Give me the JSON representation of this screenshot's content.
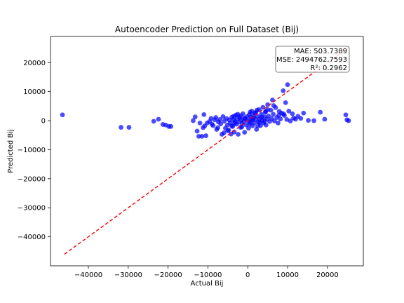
{
  "chart_data": {
    "type": "scatter",
    "title": "Autoencoder Prediction on Full Dataset (Bij)",
    "xlabel": "Actual Bij",
    "ylabel": "Predicted Bij",
    "xlim": [
      -49500,
      29000
    ],
    "ylim": [
      -50000,
      29000
    ],
    "xticks": [
      -40000,
      -30000,
      -20000,
      -10000,
      0,
      10000,
      20000
    ],
    "yticks": [
      -40000,
      -30000,
      -20000,
      -10000,
      0,
      10000,
      20000
    ],
    "xtick_labels": [
      "−40000",
      "−30000",
      "−20000",
      "−10000",
      "0",
      "10000",
      "20000"
    ],
    "ytick_labels": [
      "−40000",
      "−30000",
      "−20000",
      "−10000",
      "0",
      "10000",
      "20000"
    ],
    "grid": false,
    "point_color": "#0000ff",
    "point_alpha": 0.7,
    "reference_line": {
      "style": "dashed",
      "color": "#ff0000",
      "from": [
        -46000,
        -46000
      ],
      "to": [
        25500,
        25500
      ]
    },
    "stats": [
      "MAE: 503.7389",
      "MSE: 2494762.7593",
      "R²: 0.2962"
    ],
    "stats_placement": "top-right",
    "points": [
      [
        -46500,
        2000
      ],
      [
        -31800,
        -2300
      ],
      [
        -29800,
        -2300
      ],
      [
        -23600,
        -200
      ],
      [
        -22400,
        500
      ],
      [
        -21300,
        -1300
      ],
      [
        -20600,
        -1500
      ],
      [
        -19800,
        -2000
      ],
      [
        -19300,
        -2000
      ],
      [
        -13700,
        0
      ],
      [
        -13200,
        1300
      ],
      [
        -12700,
        -3600
      ],
      [
        -12300,
        -5400
      ],
      [
        -11500,
        -5400
      ],
      [
        -11200,
        -2400
      ],
      [
        -11000,
        2100
      ],
      [
        -10500,
        -5200
      ],
      [
        -10200,
        -800
      ],
      [
        -9600,
        -300
      ],
      [
        -9200,
        800
      ],
      [
        -8700,
        -1700
      ],
      [
        -8300,
        300
      ],
      [
        -7800,
        -3000
      ],
      [
        -7400,
        -400
      ],
      [
        -7000,
        400
      ],
      [
        -6800,
        -1100
      ],
      [
        -6500,
        -4700
      ],
      [
        -6200,
        1400
      ],
      [
        -5900,
        -200
      ],
      [
        -5600,
        -2600
      ],
      [
        -5300,
        700
      ],
      [
        -5100,
        -1500
      ],
      [
        -4800,
        -3200
      ],
      [
        -4600,
        200
      ],
      [
        -4400,
        -800
      ],
      [
        -4200,
        -4600
      ],
      [
        -4000,
        1200
      ],
      [
        -3800,
        -2000
      ],
      [
        -3600,
        300
      ],
      [
        -3400,
        -3900
      ],
      [
        -3200,
        -300
      ],
      [
        -3000,
        1900
      ],
      [
        -2800,
        -1200
      ],
      [
        -2600,
        600
      ],
      [
        -2400,
        -4700
      ],
      [
        -2200,
        -500
      ],
      [
        -2000,
        1000
      ],
      [
        -1800,
        -2300
      ],
      [
        -1600,
        300
      ],
      [
        -1400,
        -1000
      ],
      [
        -1200,
        2400
      ],
      [
        -1000,
        -300
      ],
      [
        -800,
        -4000
      ],
      [
        -600,
        700
      ],
      [
        -400,
        -1500
      ],
      [
        -200,
        1400
      ],
      [
        0,
        0
      ],
      [
        200,
        -2600
      ],
      [
        400,
        2100
      ],
      [
        600,
        -600
      ],
      [
        800,
        400
      ],
      [
        1000,
        3300
      ],
      [
        1200,
        -1800
      ],
      [
        1400,
        900
      ],
      [
        1600,
        -800
      ],
      [
        1800,
        2600
      ],
      [
        2000,
        400
      ],
      [
        2200,
        -3000
      ],
      [
        2400,
        1500
      ],
      [
        2600,
        -400
      ],
      [
        2800,
        3800
      ],
      [
        3000,
        700
      ],
      [
        3200,
        -1700
      ],
      [
        3400,
        2200
      ],
      [
        3600,
        100
      ],
      [
        3800,
        4600
      ],
      [
        4000,
        -800
      ],
      [
        4200,
        1300
      ],
      [
        4400,
        2900
      ],
      [
        4600,
        -1500
      ],
      [
        4800,
        500
      ],
      [
        5000,
        5500
      ],
      [
        5200,
        1600
      ],
      [
        5500,
        -300
      ],
      [
        5800,
        3600
      ],
      [
        6000,
        700
      ],
      [
        6200,
        7100
      ],
      [
        6400,
        2200
      ],
      [
        6700,
        -100
      ],
      [
        7000,
        4500
      ],
      [
        7300,
        1100
      ],
      [
        7600,
        -800
      ],
      [
        7900,
        3200
      ],
      [
        8200,
        600
      ],
      [
        8500,
        2600
      ],
      [
        8900,
        10300
      ],
      [
        9200,
        1800
      ],
      [
        9500,
        6200
      ],
      [
        9800,
        400
      ],
      [
        10000,
        12400
      ],
      [
        10300,
        3300
      ],
      [
        10700,
        -100
      ],
      [
        11200,
        2400
      ],
      [
        12000,
        500
      ],
      [
        12600,
        1500
      ],
      [
        13300,
        800
      ],
      [
        14000,
        2600
      ],
      [
        15200,
        100
      ],
      [
        16600,
        0
      ],
      [
        18200,
        2900
      ],
      [
        19300,
        500
      ],
      [
        24600,
        2000
      ],
      [
        24900,
        300
      ],
      [
        25300,
        0
      ],
      [
        2000,
        2800
      ],
      [
        -3500,
        1500
      ],
      [
        500,
        -1200
      ],
      [
        1500,
        1800
      ],
      [
        -1500,
        -2200
      ],
      [
        3000,
        -600
      ],
      [
        4500,
        3200
      ],
      [
        -5000,
        -3500
      ],
      [
        -2500,
        2200
      ],
      [
        800,
        1200
      ],
      [
        2500,
        -1800
      ],
      [
        6500,
        5200
      ],
      [
        5000,
        3800
      ],
      [
        -7500,
        -2400
      ],
      [
        -9000,
        -1200
      ],
      [
        -6000,
        -4200
      ],
      [
        3500,
        1200
      ],
      [
        1200,
        200
      ],
      [
        -800,
        900
      ],
      [
        -3300,
        -1000
      ],
      [
        7800,
        1900
      ],
      [
        9000,
        2300
      ],
      [
        11500,
        900
      ],
      [
        -10800,
        -1800
      ],
      [
        -12000,
        -800
      ],
      [
        -8000,
        1100
      ],
      [
        4200,
        -200
      ],
      [
        2300,
        3600
      ],
      [
        600,
        2900
      ],
      [
        -1800,
        1700
      ],
      [
        -4000,
        -1800
      ]
    ]
  }
}
